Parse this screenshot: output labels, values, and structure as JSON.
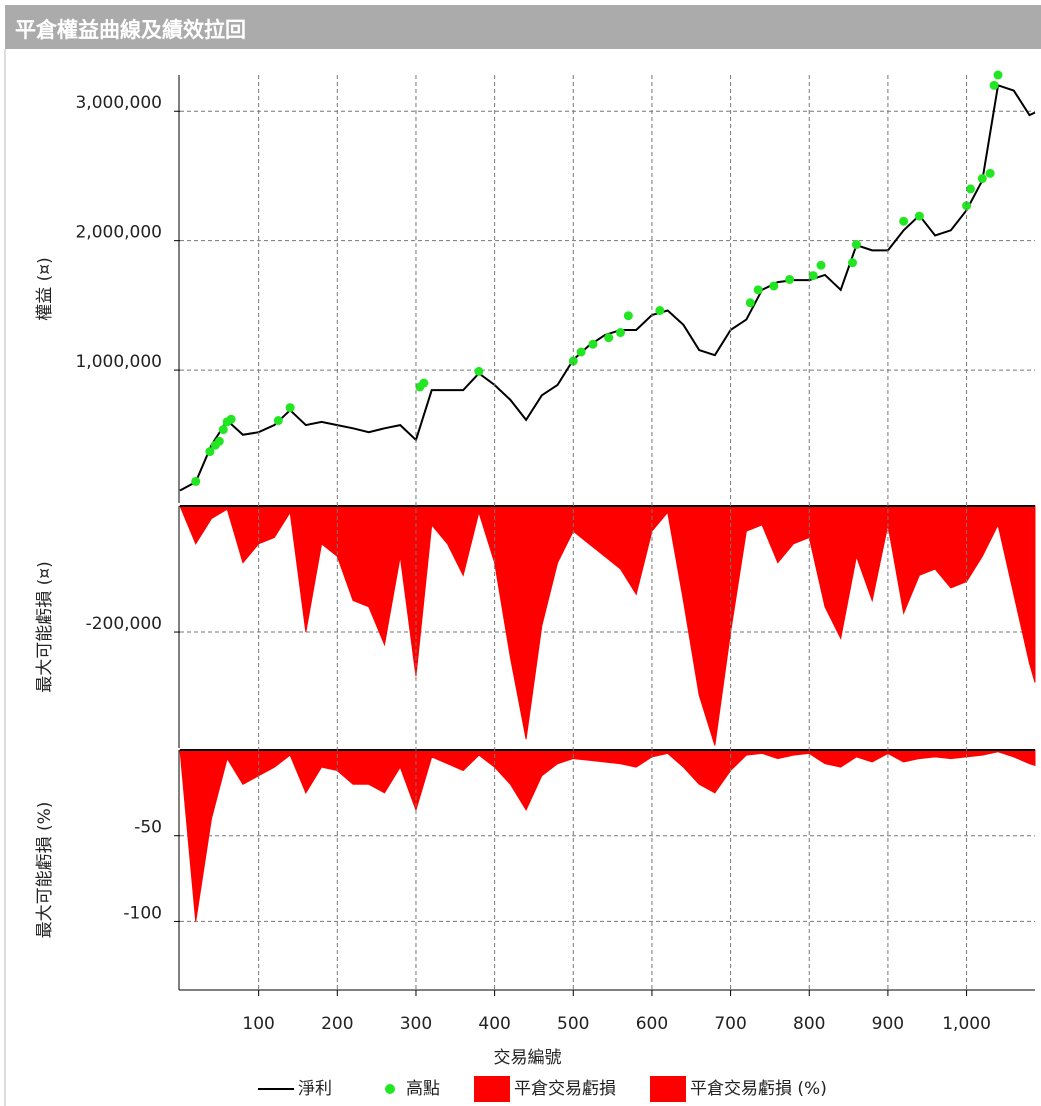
{
  "chart_data": [
    {
      "type": "line",
      "title": "平倉權益曲線及績效拉回",
      "y_label": "權益 (¤)",
      "x": [
        0,
        20,
        40,
        60,
        80,
        100,
        120,
        140,
        160,
        180,
        200,
        220,
        240,
        260,
        280,
        300,
        320,
        340,
        360,
        380,
        400,
        420,
        440,
        460,
        480,
        500,
        520,
        540,
        560,
        580,
        600,
        620,
        640,
        660,
        680,
        700,
        720,
        740,
        760,
        780,
        800,
        820,
        840,
        860,
        880,
        900,
        920,
        940,
        960,
        980,
        1000,
        1020,
        1040,
        1060,
        1080,
        1087
      ],
      "xlim": [
        0,
        1087
      ],
      "ylim": [
        -27000,
        3280000
      ],
      "yticks": [
        {
          "value": 1000000,
          "label": "1,000,000"
        },
        {
          "value": 2000000,
          "label": "2,000,000"
        },
        {
          "value": 3000000,
          "label": "3,000,000"
        }
      ],
      "grid": true,
      "series": [
        {
          "name": "淨利",
          "type": "line",
          "color": "#000000",
          "values": [
            70000,
            135000,
            420000,
            610000,
            500000,
            520000,
            575000,
            690000,
            575000,
            600000,
            575000,
            550000,
            520000,
            550000,
            575000,
            460000,
            845000,
            845000,
            845000,
            975000,
            885000,
            770000,
            615000,
            805000,
            885000,
            1080000,
            1190000,
            1270000,
            1310000,
            1310000,
            1425000,
            1460000,
            1350000,
            1155000,
            1115000,
            1310000,
            1390000,
            1620000,
            1680000,
            1695000,
            1695000,
            1735000,
            1620000,
            1965000,
            1925000,
            1925000,
            2080000,
            2195000,
            2040000,
            2080000,
            2235000,
            2465000,
            3200000,
            3160000,
            2970000,
            2990000
          ]
        },
        {
          "name": "高點",
          "type": "scatter",
          "color": "#22e622",
          "x": [
            20,
            38,
            45,
            50,
            55,
            60,
            65,
            125,
            140,
            305,
            310,
            380,
            500,
            510,
            525,
            545,
            560,
            570,
            610,
            725,
            735,
            755,
            775,
            805,
            815,
            855,
            860,
            920,
            940,
            1000,
            1005,
            1020,
            1030,
            1035,
            1040
          ],
          "values": [
            140000,
            370000,
            420000,
            450000,
            540000,
            600000,
            620000,
            610000,
            710000,
            870000,
            900000,
            990000,
            1070000,
            1140000,
            1200000,
            1250000,
            1290000,
            1420000,
            1460000,
            1520000,
            1620000,
            1650000,
            1700000,
            1730000,
            1810000,
            1830000,
            1970000,
            2150000,
            2190000,
            2270000,
            2400000,
            2480000,
            2520000,
            3200000,
            3280000
          ]
        }
      ]
    },
    {
      "type": "area",
      "y_label": "最大可能虧損 (¤)",
      "x": [
        0,
        20,
        40,
        60,
        80,
        100,
        120,
        140,
        160,
        180,
        200,
        220,
        240,
        260,
        280,
        300,
        320,
        340,
        360,
        380,
        400,
        420,
        440,
        460,
        480,
        500,
        520,
        540,
        560,
        580,
        600,
        620,
        640,
        660,
        680,
        700,
        720,
        740,
        760,
        780,
        800,
        820,
        840,
        860,
        880,
        900,
        920,
        940,
        960,
        980,
        1000,
        1020,
        1040,
        1060,
        1080,
        1087
      ],
      "xlim": [
        0,
        1087
      ],
      "ylim": [
        -384000,
        0
      ],
      "yticks": [
        {
          "value": -200000,
          "label": "-200,000"
        }
      ],
      "grid": true,
      "series": [
        {
          "name": "平倉交易虧損",
          "color": "#ff0000",
          "values": [
            0,
            -60000,
            -20000,
            -5000,
            -90000,
            -60000,
            -50000,
            -10000,
            -200000,
            -60000,
            -80000,
            -150000,
            -160000,
            -220000,
            -80000,
            -270000,
            -30000,
            -60000,
            -110000,
            -10000,
            -90000,
            -240000,
            -370000,
            -190000,
            -90000,
            -40000,
            -60000,
            -80000,
            -100000,
            -140000,
            -40000,
            -10000,
            -150000,
            -300000,
            -380000,
            -200000,
            -40000,
            -30000,
            -90000,
            -60000,
            -50000,
            -160000,
            -210000,
            -80000,
            -150000,
            -30000,
            -170000,
            -110000,
            -100000,
            -130000,
            -120000,
            -80000,
            -30000,
            -140000,
            -250000,
            -280000
          ]
        }
      ]
    },
    {
      "type": "area",
      "y_label": "最大可能虧損 (%)",
      "x_label": "交易編號",
      "x": [
        0,
        20,
        40,
        60,
        80,
        100,
        120,
        140,
        160,
        180,
        200,
        220,
        240,
        260,
        280,
        300,
        320,
        340,
        360,
        380,
        400,
        420,
        440,
        460,
        480,
        500,
        520,
        540,
        560,
        580,
        600,
        620,
        640,
        660,
        680,
        700,
        720,
        740,
        760,
        780,
        800,
        820,
        840,
        860,
        880,
        900,
        920,
        940,
        960,
        980,
        1000,
        1020,
        1040,
        1060,
        1080,
        1087
      ],
      "xlim": [
        0,
        1087
      ],
      "xticks": [
        100,
        200,
        300,
        400,
        500,
        600,
        700,
        800,
        900,
        {
          "value": 1000,
          "label": "1,000"
        }
      ],
      "ylim": [
        -140,
        0
      ],
      "yticks": [
        -50,
        -100
      ],
      "grid": true,
      "series": [
        {
          "name": "平倉交易虧損 (%)",
          "color": "#ff0000",
          "values": [
            0,
            -100,
            -40,
            -5,
            -20,
            -15,
            -10,
            -3,
            -25,
            -10,
            -12,
            -20,
            -20,
            -25,
            -10,
            -35,
            -4,
            -8,
            -12,
            -3,
            -10,
            -20,
            -35,
            -15,
            -8,
            -5,
            -6,
            -7,
            -8,
            -10,
            -4,
            -2,
            -10,
            -20,
            -25,
            -12,
            -3,
            -2,
            -5,
            -3,
            -2,
            -8,
            -10,
            -4,
            -7,
            -2,
            -7,
            -5,
            -4,
            -5,
            -4,
            -3,
            -1,
            -4,
            -8,
            -9
          ]
        }
      ]
    }
  ]
}
